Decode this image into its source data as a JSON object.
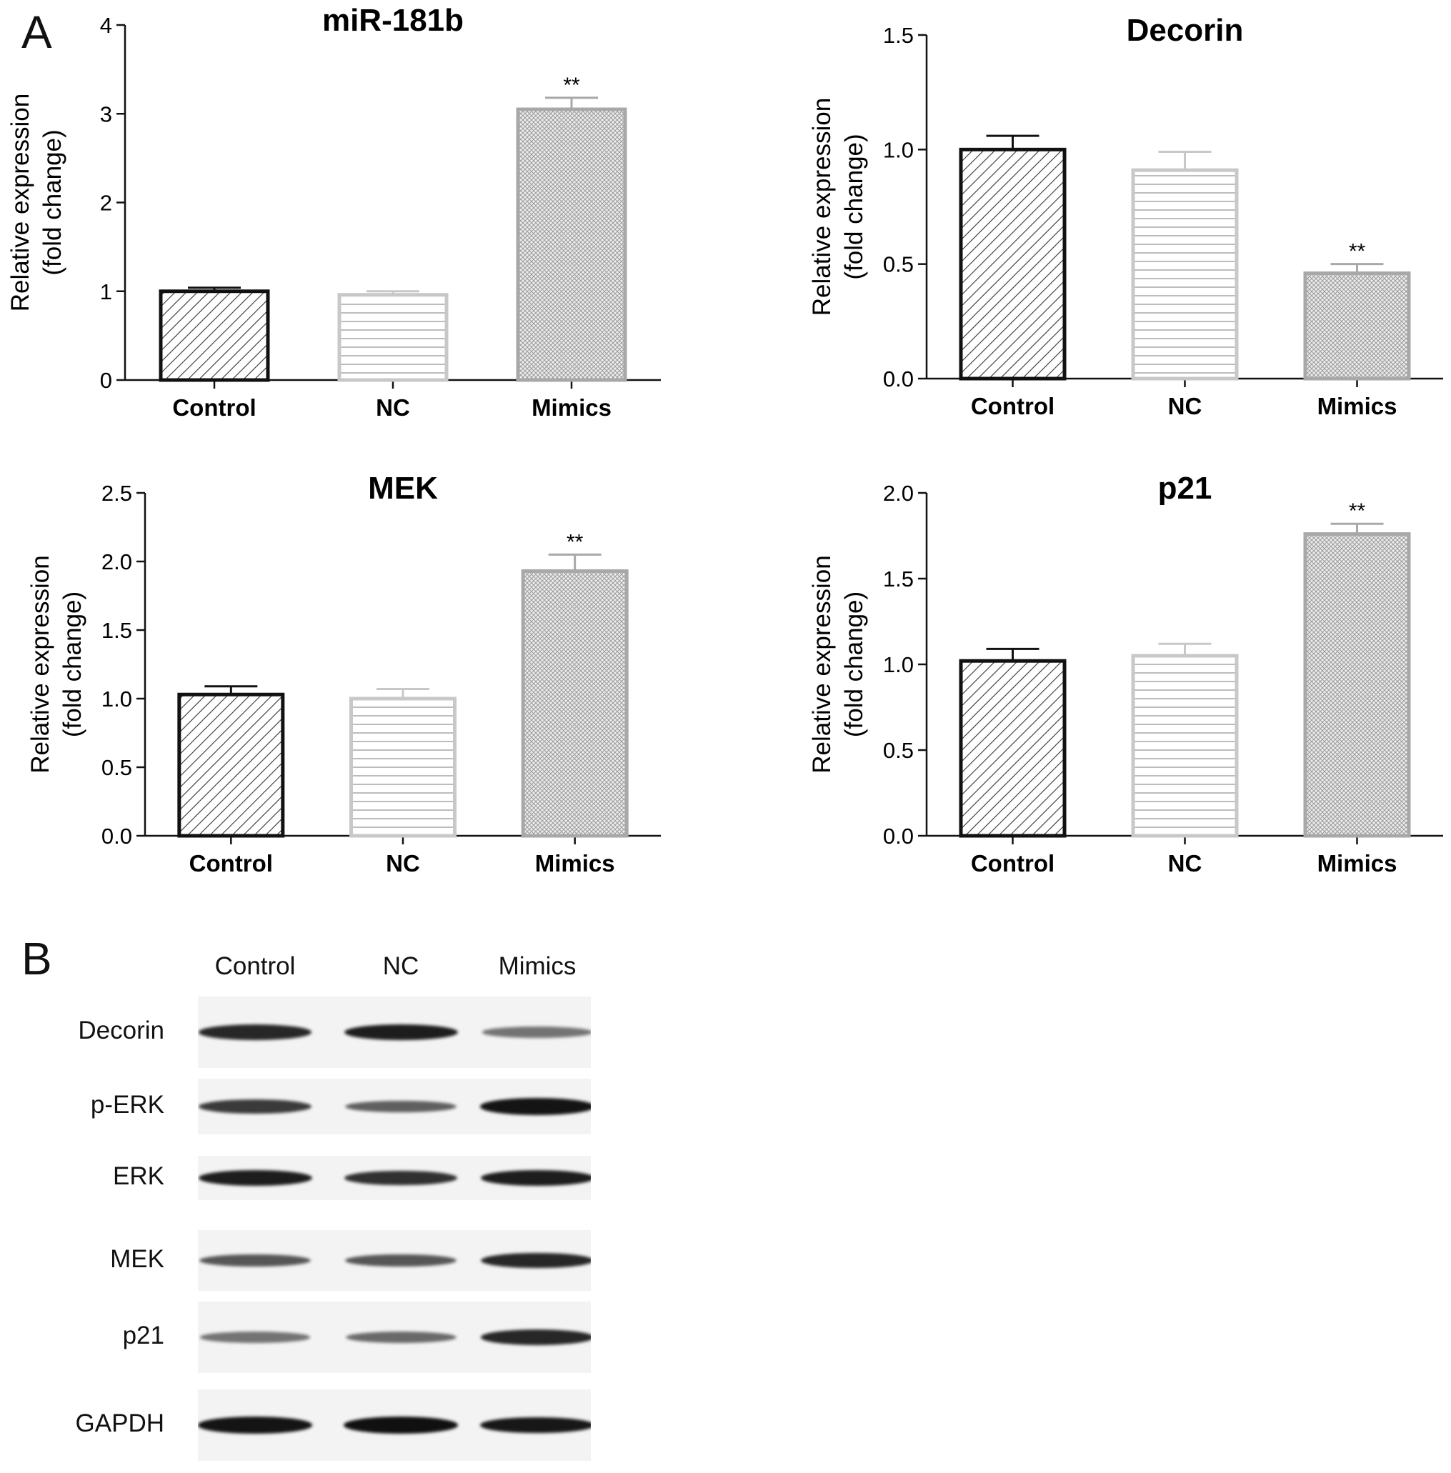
{
  "figure": {
    "panel_a": "A",
    "panel_b": "B"
  },
  "chart_data": [
    {
      "type": "bar",
      "title": "miR-181b",
      "ylabel": [
        "Relative expression",
        "(fold change)"
      ],
      "categories": [
        "Control",
        "NC",
        "Mimics"
      ],
      "values": [
        1.0,
        0.96,
        3.05
      ],
      "errors": [
        0.04,
        0.04,
        0.13
      ],
      "significance": [
        "",
        "",
        "**"
      ],
      "ylim": [
        0,
        4
      ],
      "yticks": [
        0,
        1,
        2,
        3,
        4
      ],
      "ytick_labels": [
        "0",
        "1",
        "2",
        "3",
        "4"
      ]
    },
    {
      "type": "bar",
      "title": "Decorin",
      "ylabel": [
        "Relative expression",
        "(fold change)"
      ],
      "categories": [
        "Control",
        "NC",
        "Mimics"
      ],
      "values": [
        1.0,
        0.91,
        0.46
      ],
      "errors": [
        0.06,
        0.08,
        0.04
      ],
      "significance": [
        "",
        "",
        "**"
      ],
      "ylim": [
        0,
        1.5
      ],
      "yticks": [
        0,
        0.5,
        1.0,
        1.5
      ],
      "ytick_labels": [
        "0.0",
        "0.5",
        "1.0",
        "1.5"
      ]
    },
    {
      "type": "bar",
      "title": "MEK",
      "ylabel": [
        "Relative expression",
        "(fold change)"
      ],
      "categories": [
        "Control",
        "NC",
        "Mimics"
      ],
      "values": [
        1.03,
        1.0,
        1.93
      ],
      "errors": [
        0.06,
        0.07,
        0.12
      ],
      "significance": [
        "",
        "",
        "**"
      ],
      "ylim": [
        0,
        2.5
      ],
      "yticks": [
        0,
        0.5,
        1.0,
        1.5,
        2.0,
        2.5
      ],
      "ytick_labels": [
        "0.0",
        "0.5",
        "1.0",
        "1.5",
        "2.0",
        "2.5"
      ]
    },
    {
      "type": "bar",
      "title": "p21",
      "ylabel": [
        "Relative expression",
        "(fold change)"
      ],
      "categories": [
        "Control",
        "NC",
        "Mimics"
      ],
      "values": [
        1.02,
        1.05,
        1.76
      ],
      "errors": [
        0.07,
        0.07,
        0.06
      ],
      "significance": [
        "",
        "",
        "**"
      ],
      "ylim": [
        0,
        2.0
      ],
      "yticks": [
        0,
        0.5,
        1.0,
        1.5,
        2.0
      ],
      "ytick_labels": [
        "0.0",
        "0.5",
        "1.0",
        "1.5",
        "2.0"
      ]
    }
  ],
  "bar_styles": [
    {
      "name": "Control",
      "stroke": "#111111",
      "pattern": "diagonal"
    },
    {
      "name": "NC",
      "stroke": "#c8c8c8",
      "pattern": "horizontal"
    },
    {
      "name": "Mimics",
      "stroke": "#a8a8a8",
      "pattern": "crosshatch"
    }
  ],
  "western_blot": {
    "lanes": [
      "Control",
      "NC",
      "Mimics"
    ],
    "rows": [
      {
        "label": "Decorin",
        "intensity": [
          0.85,
          0.9,
          0.45
        ]
      },
      {
        "label": "p-ERK",
        "intensity": [
          0.75,
          0.55,
          0.95
        ]
      },
      {
        "label": "ERK",
        "intensity": [
          0.9,
          0.8,
          0.9
        ]
      },
      {
        "label": "MEK",
        "intensity": [
          0.6,
          0.6,
          0.85
        ]
      },
      {
        "label": "p21",
        "intensity": [
          0.45,
          0.5,
          0.85
        ]
      },
      {
        "label": "GAPDH",
        "intensity": [
          0.95,
          0.97,
          0.93
        ]
      }
    ]
  }
}
